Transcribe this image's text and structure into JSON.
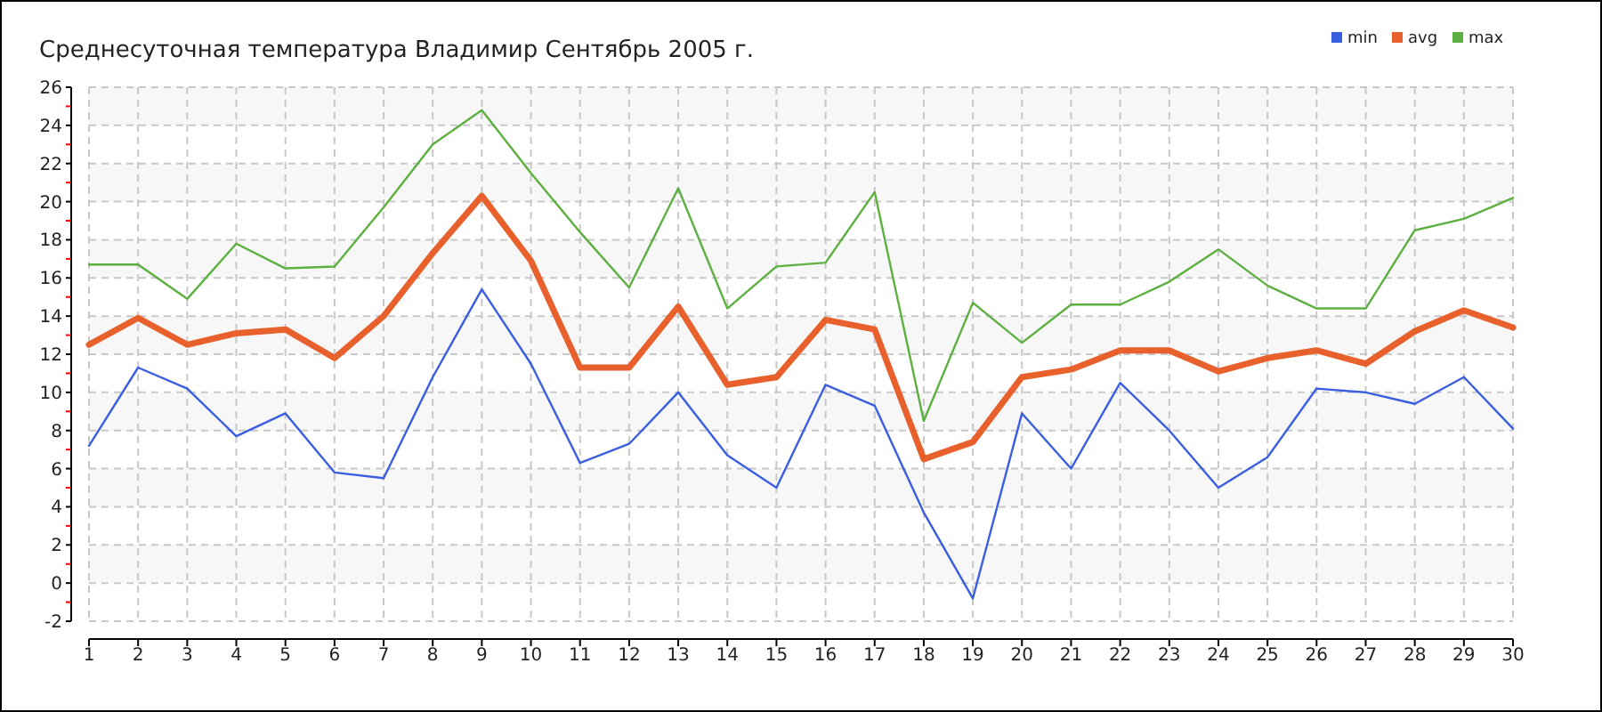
{
  "chart_data": {
    "type": "line",
    "title": "Среднесуточная температура Владимир  Сентябрь 2005 г.",
    "x": [
      1,
      2,
      3,
      4,
      5,
      6,
      7,
      8,
      9,
      10,
      11,
      12,
      13,
      14,
      15,
      16,
      17,
      18,
      19,
      20,
      21,
      22,
      23,
      24,
      25,
      26,
      27,
      28,
      29,
      30
    ],
    "xlim": [
      1,
      30
    ],
    "xticks": [
      1,
      2,
      3,
      4,
      5,
      6,
      7,
      8,
      9,
      10,
      11,
      12,
      13,
      14,
      15,
      16,
      17,
      18,
      19,
      20,
      21,
      22,
      23,
      24,
      25,
      26,
      27,
      28,
      29,
      30
    ],
    "ylim": [
      -2,
      26
    ],
    "yticks": [
      -2,
      {
        "value": -1,
        "label": null
      },
      0,
      {
        "value": 1,
        "label": null
      },
      2,
      {
        "value": 3,
        "label": null
      },
      4,
      {
        "value": 5,
        "label": null
      },
      6,
      {
        "value": 7,
        "label": null
      },
      8,
      {
        "value": 9,
        "label": null
      },
      10,
      {
        "value": 11,
        "label": null
      },
      12,
      {
        "value": 13,
        "label": null
      },
      14,
      {
        "value": 15,
        "label": null
      },
      16,
      {
        "value": 17,
        "label": null
      },
      18,
      {
        "value": 19,
        "label": null
      },
      20,
      {
        "value": 21,
        "label": null
      },
      22,
      {
        "value": 23,
        "label": null
      },
      24,
      {
        "value": 25,
        "label": null
      },
      26
    ],
    "grid": true,
    "legend": "top right",
    "marker": "none",
    "series": [
      {
        "name": "min",
        "color": "#3a5ee0",
        "values": [
          7.2,
          11.3,
          10.2,
          7.7,
          8.9,
          5.8,
          5.5,
          10.8,
          15.4,
          11.5,
          6.3,
          7.3,
          10.0,
          6.7,
          5.0,
          10.4,
          9.3,
          3.7,
          -0.8,
          8.9,
          6.0,
          10.5,
          8.0,
          5.0,
          6.6,
          10.2,
          10.0,
          9.4,
          10.8,
          8.1
        ]
      },
      {
        "name": "avg",
        "color": "#e8602c",
        "values": [
          12.5,
          13.9,
          12.5,
          13.1,
          13.3,
          11.8,
          14.0,
          17.3,
          20.3,
          16.9,
          11.3,
          11.3,
          14.5,
          10.4,
          10.8,
          13.8,
          13.3,
          6.5,
          7.4,
          10.8,
          11.2,
          12.2,
          12.2,
          11.1,
          11.8,
          12.2,
          11.5,
          13.2,
          14.3,
          13.4
        ]
      },
      {
        "name": "max",
        "color": "#5cb040",
        "values": [
          16.7,
          16.7,
          14.9,
          17.8,
          16.5,
          16.6,
          19.7,
          23.0,
          24.8,
          21.5,
          18.4,
          15.5,
          20.7,
          14.4,
          16.6,
          16.8,
          20.5,
          8.5,
          14.7,
          12.6,
          14.6,
          14.6,
          15.8,
          17.5,
          15.6,
          14.4,
          14.4,
          18.5,
          19.1,
          20.2
        ]
      }
    ]
  }
}
